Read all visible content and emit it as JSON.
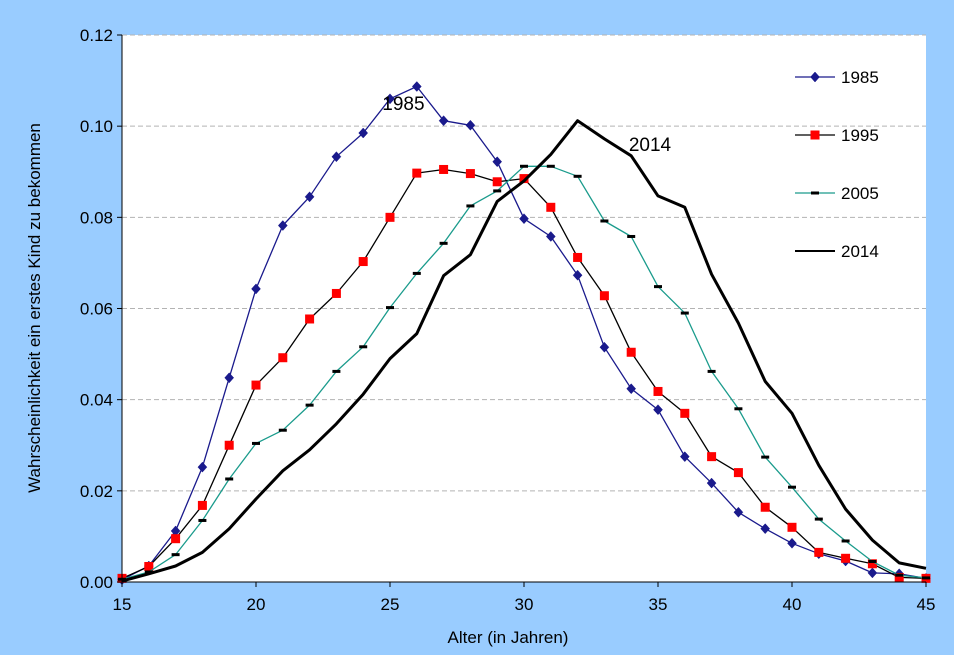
{
  "chart_data": {
    "type": "line",
    "xlabel": "Alter (in Jahren)",
    "ylabel": "Wahrscheinlichkeit ein erstes Kind zu bekommen",
    "xlim": [
      15,
      45
    ],
    "ylim": [
      0,
      0.12
    ],
    "xticks": [
      "15",
      "20",
      "25",
      "30",
      "35",
      "40",
      "45"
    ],
    "yticks": [
      "0.00",
      "0.02",
      "0.04",
      "0.06",
      "0.08",
      "0.10",
      "0.12"
    ],
    "grid": "horizontal dashed",
    "legend_position": "top-right",
    "x": [
      15,
      16,
      17,
      18,
      19,
      20,
      21,
      22,
      23,
      24,
      25,
      26,
      27,
      28,
      29,
      30,
      31,
      32,
      33,
      34,
      35,
      36,
      37,
      38,
      39,
      40,
      41,
      42,
      43,
      44,
      45
    ],
    "series": [
      {
        "name": "1985",
        "color": "#1a1a8c",
        "marker": "diamond",
        "values": [
          0.0005,
          0.0035,
          0.0112,
          0.0252,
          0.0448,
          0.0643,
          0.0782,
          0.0845,
          0.0933,
          0.0985,
          0.106,
          0.1087,
          0.1012,
          0.1002,
          0.0922,
          0.0797,
          0.0758,
          0.0673,
          0.0515,
          0.0424,
          0.0378,
          0.0275,
          0.0217,
          0.0153,
          0.0117,
          0.0085,
          0.0062,
          0.0046,
          0.002,
          0.0018,
          0.0008
        ]
      },
      {
        "name": "1995",
        "color": "#ff0000",
        "marker": "square",
        "values": [
          0.0008,
          0.0034,
          0.0095,
          0.0168,
          0.03,
          0.0432,
          0.0492,
          0.0577,
          0.0633,
          0.0703,
          0.08,
          0.0897,
          0.0905,
          0.0896,
          0.0878,
          0.0885,
          0.0822,
          0.0712,
          0.0628,
          0.0504,
          0.0418,
          0.037,
          0.0275,
          0.024,
          0.0164,
          0.012,
          0.0065,
          0.0052,
          0.004,
          0.001,
          0.0008
        ]
      },
      {
        "name": "2005",
        "color": "#1a9b8c",
        "marker": "dash",
        "values": [
          0.0006,
          0.0022,
          0.006,
          0.0135,
          0.0226,
          0.0304,
          0.0333,
          0.0388,
          0.0462,
          0.0516,
          0.0602,
          0.0677,
          0.0743,
          0.0825,
          0.0858,
          0.0912,
          0.0912,
          0.089,
          0.0792,
          0.0758,
          0.0648,
          0.059,
          0.0462,
          0.038,
          0.0274,
          0.0208,
          0.0138,
          0.009,
          0.0045,
          0.0015,
          0.0009
        ]
      },
      {
        "name": "2014",
        "color": "#000000",
        "marker": "none",
        "values": [
          0.0002,
          0.0018,
          0.0035,
          0.0065,
          0.0117,
          0.0182,
          0.0244,
          0.029,
          0.0347,
          0.0412,
          0.049,
          0.0545,
          0.0672,
          0.0718,
          0.0835,
          0.088,
          0.0938,
          0.1012,
          0.0972,
          0.0935,
          0.0847,
          0.0822,
          0.0675,
          0.0568,
          0.044,
          0.037,
          0.0256,
          0.016,
          0.0092,
          0.0042,
          0.003
        ]
      }
    ],
    "annotations": [
      {
        "text": "1985",
        "x": 25.5,
        "y": 0.1035
      },
      {
        "text": "2014",
        "x": 34.7,
        "y": 0.0945
      }
    ]
  }
}
